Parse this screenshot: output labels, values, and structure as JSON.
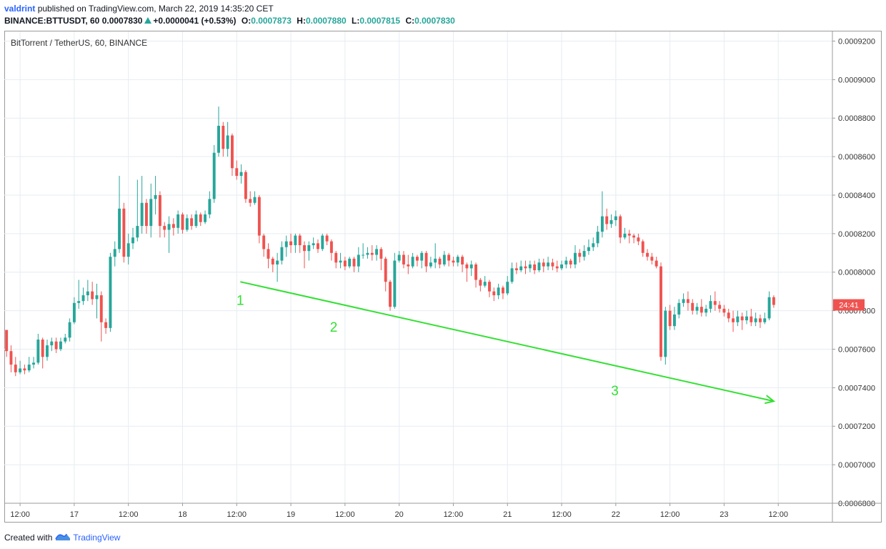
{
  "header": {
    "user": "valdrint",
    "published": "published on TradingView.com, March 22, 2019 14:35:20 CET",
    "symbol": "BINANCE:BTTUSDT, 60",
    "last": "0.0007830",
    "change": "+0.0000041 (+0.53%)",
    "o_label": "O:",
    "o": "0.0007873",
    "h_label": "H:",
    "h": "0.0007880",
    "l_label": "L:",
    "l": "0.0007815",
    "c_label": "C:",
    "c": "0.0007830"
  },
  "legend": "BitTorrent / TetherUS, 60, BINANCE",
  "footer": {
    "created_with": "Created with",
    "brand": "TradingView"
  },
  "colors": {
    "up": "#26a69a",
    "down": "#ef5350",
    "annotation": "#33e033",
    "grid": "#e6ecf2",
    "timer": "#ef5350"
  },
  "price_timer": "24:41",
  "annotations": [
    "1",
    "2",
    "3"
  ],
  "chart_data": {
    "type": "candlestick",
    "title": "BitTorrent / TetherUS, 60, BINANCE",
    "xlabel": "",
    "ylabel": "",
    "ylim": [
      0.00068,
      0.000925
    ],
    "y_ticks": [
      "0.0006800",
      "0.0007000",
      "0.0007200",
      "0.0007400",
      "0.0007600",
      "0.0007800",
      "0.0008000",
      "0.0008200",
      "0.0008400",
      "0.0008600",
      "0.0008800",
      "0.0009000",
      "0.0009200"
    ],
    "x_ticks": [
      "12:00",
      "17",
      "12:00",
      "18",
      "12:00",
      "19",
      "12:00",
      "20",
      "12:00",
      "21",
      "12:00",
      "22",
      "12:00",
      "23",
      "12:00"
    ],
    "x_tick_hours": [
      12,
      24,
      36,
      48,
      60,
      72,
      84,
      96,
      108,
      120,
      132,
      144,
      156,
      168,
      180
    ],
    "x_range_hours": [
      8.5,
      192
    ],
    "grid": true,
    "current_price": 0.000783,
    "candles": [
      [
        0.00077,
        0.000759,
        0.00077,
        0.000756
      ],
      [
        0.000759,
        0.000752,
        0.000762,
        0.000748
      ],
      [
        0.000752,
        0.000748,
        0.000756,
        0.000746
      ],
      [
        0.000748,
        0.00075,
        0.000754,
        0.000747
      ],
      [
        0.00075,
        0.000749,
        0.000752,
        0.000747
      ],
      [
        0.000749,
        0.000752,
        0.000756,
        0.000748
      ],
      [
        0.000752,
        0.000753,
        0.000756,
        0.00075
      ],
      [
        0.000753,
        0.000765,
        0.000768,
        0.000752
      ],
      [
        0.000765,
        0.000756,
        0.000766,
        0.00075
      ],
      [
        0.000756,
        0.000762,
        0.000765,
        0.000754
      ],
      [
        0.000762,
        0.000764,
        0.000766,
        0.000759
      ],
      [
        0.000764,
        0.00076,
        0.000766,
        0.000758
      ],
      [
        0.00076,
        0.000764,
        0.000766,
        0.000759
      ],
      [
        0.000764,
        0.000766,
        0.000768,
        0.000763
      ],
      [
        0.000766,
        0.000774,
        0.000776,
        0.000764
      ],
      [
        0.000774,
        0.000784,
        0.000787,
        0.000773
      ],
      [
        0.000784,
        0.000785,
        0.000796,
        0.000781
      ],
      [
        0.000785,
        0.000788,
        0.000792,
        0.000783
      ],
      [
        0.000788,
        0.00079,
        0.000796,
        0.000785
      ],
      [
        0.00079,
        0.000786,
        0.000795,
        0.000783
      ],
      [
        0.000786,
        0.000788,
        0.000794,
        0.000776
      ],
      [
        0.000788,
        0.000774,
        0.00079,
        0.000764
      ],
      [
        0.000774,
        0.000771,
        0.000776,
        0.000768
      ],
      [
        0.000771,
        0.000808,
        0.00081,
        0.000769
      ],
      [
        0.000808,
        0.000812,
        0.000816,
        0.000803
      ],
      [
        0.000812,
        0.000833,
        0.00085,
        0.00081
      ],
      [
        0.000833,
        0.000808,
        0.000836,
        0.000805
      ],
      [
        0.000808,
        0.000815,
        0.00082,
        0.000804
      ],
      [
        0.000815,
        0.000818,
        0.000823,
        0.000812
      ],
      [
        0.000818,
        0.000824,
        0.000848,
        0.000816
      ],
      [
        0.000824,
        0.000836,
        0.00085,
        0.00082
      ],
      [
        0.000836,
        0.000824,
        0.000838,
        0.00082
      ],
      [
        0.000824,
        0.000838,
        0.000846,
        0.000818
      ],
      [
        0.000838,
        0.00084,
        0.00085,
        0.00083
      ],
      [
        0.00084,
        0.000824,
        0.000842,
        0.000818
      ],
      [
        0.000824,
        0.000822,
        0.000826,
        0.000818
      ],
      [
        0.000822,
        0.000825,
        0.000829,
        0.00081
      ],
      [
        0.000825,
        0.000823,
        0.000828,
        0.000819
      ],
      [
        0.000823,
        0.00083,
        0.000832,
        0.00082
      ],
      [
        0.00083,
        0.000822,
        0.000831,
        0.00082
      ],
      [
        0.000822,
        0.000828,
        0.00083,
        0.000821
      ],
      [
        0.000828,
        0.000824,
        0.00083,
        0.000822
      ],
      [
        0.000824,
        0.00083,
        0.000832,
        0.000823
      ],
      [
        0.00083,
        0.000826,
        0.000831,
        0.000824
      ],
      [
        0.000826,
        0.00083,
        0.000832,
        0.000825
      ],
      [
        0.00083,
        0.000838,
        0.000842,
        0.000828
      ],
      [
        0.000838,
        0.000862,
        0.000866,
        0.000836
      ],
      [
        0.000862,
        0.000876,
        0.000886,
        0.00086
      ],
      [
        0.000876,
        0.000864,
        0.000878,
        0.00086
      ],
      [
        0.000864,
        0.000871,
        0.000878,
        0.00086
      ],
      [
        0.000871,
        0.000854,
        0.000872,
        0.00085
      ],
      [
        0.000854,
        0.00085,
        0.000858,
        0.000848
      ],
      [
        0.00085,
        0.000852,
        0.000856,
        0.000846
      ],
      [
        0.000852,
        0.000838,
        0.000853,
        0.000836
      ],
      [
        0.000838,
        0.000836,
        0.000842,
        0.000834
      ],
      [
        0.000836,
        0.000839,
        0.000842,
        0.000835
      ],
      [
        0.000839,
        0.000819,
        0.00084,
        0.000815
      ],
      [
        0.000819,
        0.000812,
        0.00082,
        0.000808
      ],
      [
        0.000812,
        0.000807,
        0.000815,
        0.000802
      ],
      [
        0.000807,
        0.000804,
        0.000808,
        0.0008
      ],
      [
        0.000804,
        0.000806,
        0.00081,
        0.000795
      ],
      [
        0.000806,
        0.000813,
        0.000816,
        0.000804
      ],
      [
        0.000813,
        0.000816,
        0.000819,
        0.000808
      ],
      [
        0.000816,
        0.000814,
        0.00082,
        0.00081
      ],
      [
        0.000814,
        0.000819,
        0.00082,
        0.00081
      ],
      [
        0.000819,
        0.000814,
        0.00082,
        0.00081
      ],
      [
        0.000814,
        0.000811,
        0.000816,
        0.000802
      ],
      [
        0.000811,
        0.000814,
        0.000816,
        0.000806
      ],
      [
        0.000814,
        0.000815,
        0.000818,
        0.000812
      ],
      [
        0.000815,
        0.000812,
        0.000817,
        0.00081
      ],
      [
        0.000812,
        0.000819,
        0.00082,
        0.000811
      ],
      [
        0.000819,
        0.000816,
        0.00082,
        0.000814
      ],
      [
        0.000816,
        0.00081,
        0.000817,
        0.000806
      ],
      [
        0.00081,
        0.000805,
        0.000811,
        0.000802
      ],
      [
        0.000805,
        0.000806,
        0.00081,
        0.000802
      ],
      [
        0.000806,
        0.000803,
        0.000808,
        0.000801
      ],
      [
        0.000803,
        0.000807,
        0.000808,
        0.000802
      ],
      [
        0.000807,
        0.000803,
        0.000808,
        0.0008
      ],
      [
        0.000803,
        0.000809,
        0.000813,
        0.0008
      ],
      [
        0.000809,
        0.000809,
        0.000815,
        0.000807
      ],
      [
        0.000809,
        0.00081,
        0.000813,
        0.000807
      ],
      [
        0.00081,
        0.000809,
        0.000814,
        0.000806
      ],
      [
        0.000809,
        0.000812,
        0.000814,
        0.000806
      ],
      [
        0.000812,
        0.000807,
        0.000813,
        0.000801
      ],
      [
        0.000807,
        0.000795,
        0.000808,
        0.00079
      ],
      [
        0.000795,
        0.000782,
        0.000796,
        0.00078
      ],
      [
        0.000782,
        0.000806,
        0.00081,
        0.000781
      ],
      [
        0.000806,
        0.000809,
        0.000811,
        0.000805
      ],
      [
        0.000809,
        0.000804,
        0.000811,
        0.000802
      ],
      [
        0.000804,
        0.000803,
        0.000809,
        0.000799
      ],
      [
        0.000803,
        0.000808,
        0.00081,
        0.000802
      ],
      [
        0.000808,
        0.000806,
        0.000809,
        0.000803
      ],
      [
        0.000806,
        0.00081,
        0.000811,
        0.000802
      ],
      [
        0.00081,
        0.000803,
        0.000811,
        0.0008
      ],
      [
        0.000803,
        0.000805,
        0.000808,
        0.000802
      ],
      [
        0.000805,
        0.000807,
        0.000815,
        0.000802
      ],
      [
        0.000807,
        0.000804,
        0.000808,
        0.000802
      ],
      [
        0.000804,
        0.000809,
        0.000811,
        0.000803
      ],
      [
        0.000809,
        0.000806,
        0.00081,
        0.000803
      ],
      [
        0.000806,
        0.000805,
        0.000808,
        0.000803
      ],
      [
        0.000805,
        0.000808,
        0.000809,
        0.000803
      ],
      [
        0.000808,
        0.000804,
        0.000809,
        0.0008
      ],
      [
        0.000804,
        0.000802,
        0.000805,
        0.000795
      ],
      [
        0.000802,
        0.000804,
        0.000806,
        0.000798
      ],
      [
        0.000804,
        0.000796,
        0.000805,
        0.000792
      ],
      [
        0.000796,
        0.000793,
        0.000797,
        0.00079
      ],
      [
        0.000793,
        0.000795,
        0.000798,
        0.000792
      ],
      [
        0.000795,
        0.00079,
        0.000796,
        0.000787
      ],
      [
        0.00079,
        0.000788,
        0.000792,
        0.000785
      ],
      [
        0.000788,
        0.000792,
        0.000794,
        0.000786
      ],
      [
        0.000792,
        0.000789,
        0.000793,
        0.000786
      ],
      [
        0.000789,
        0.000795,
        0.000798,
        0.000788
      ],
      [
        0.000795,
        0.000802,
        0.000805,
        0.000794
      ],
      [
        0.000802,
        0.000801,
        0.000805,
        0.000799
      ],
      [
        0.000801,
        0.000803,
        0.000806,
        0.0008
      ],
      [
        0.000803,
        0.000802,
        0.000806,
        0.000799
      ],
      [
        0.000802,
        0.000804,
        0.000806,
        0.0008
      ],
      [
        0.000804,
        0.000801,
        0.000806,
        0.000799
      ],
      [
        0.000801,
        0.000805,
        0.000807,
        0.0008
      ],
      [
        0.000805,
        0.000803,
        0.000807,
        0.0008
      ],
      [
        0.000803,
        0.000805,
        0.000808,
        0.000801
      ],
      [
        0.000805,
        0.000803,
        0.000807,
        0.000801
      ],
      [
        0.000803,
        0.000802,
        0.000806,
        0.0008
      ],
      [
        0.000802,
        0.000804,
        0.000806,
        0.000801
      ],
      [
        0.000804,
        0.000806,
        0.000808,
        0.000802
      ],
      [
        0.000806,
        0.000804,
        0.000807,
        0.000802
      ],
      [
        0.000804,
        0.00081,
        0.000814,
        0.000802
      ],
      [
        0.00081,
        0.000808,
        0.000812,
        0.000805
      ],
      [
        0.000808,
        0.000811,
        0.000814,
        0.000806
      ],
      [
        0.000811,
        0.000813,
        0.000817,
        0.000809
      ],
      [
        0.000813,
        0.000815,
        0.000818,
        0.000811
      ],
      [
        0.000815,
        0.000821,
        0.000824,
        0.000813
      ],
      [
        0.000821,
        0.000829,
        0.000842,
        0.000818
      ],
      [
        0.000829,
        0.000825,
        0.000833,
        0.000822
      ],
      [
        0.000825,
        0.000827,
        0.00083,
        0.000823
      ],
      [
        0.000827,
        0.000829,
        0.000832,
        0.000824
      ],
      [
        0.000829,
        0.000818,
        0.00083,
        0.000815
      ],
      [
        0.000818,
        0.00082,
        0.000823,
        0.000817
      ],
      [
        0.00082,
        0.000819,
        0.000822,
        0.000815
      ],
      [
        0.000819,
        0.000818,
        0.00082,
        0.000815
      ],
      [
        0.000818,
        0.000816,
        0.00082,
        0.000814
      ],
      [
        0.000816,
        0.00081,
        0.000817,
        0.000808
      ],
      [
        0.00081,
        0.000808,
        0.000812,
        0.000806
      ],
      [
        0.000808,
        0.000806,
        0.00081,
        0.000804
      ],
      [
        0.000806,
        0.000803,
        0.000808,
        0.000802
      ],
      [
        0.000803,
        0.000756,
        0.000805,
        0.000754
      ],
      [
        0.000756,
        0.00078,
        0.000782,
        0.000752
      ],
      [
        0.00078,
        0.000772,
        0.000783,
        0.00077
      ],
      [
        0.000772,
        0.000778,
        0.000782,
        0.00077
      ],
      [
        0.000778,
        0.000784,
        0.000786,
        0.000776
      ],
      [
        0.000784,
        0.000786,
        0.000789,
        0.000782
      ],
      [
        0.000786,
        0.000784,
        0.00079,
        0.00078
      ],
      [
        0.000784,
        0.00078,
        0.000786,
        0.000778
      ],
      [
        0.00078,
        0.000782,
        0.000784,
        0.000778
      ],
      [
        0.000782,
        0.000779,
        0.000786,
        0.000777
      ],
      [
        0.000779,
        0.000781,
        0.000783,
        0.000777
      ],
      [
        0.000781,
        0.000785,
        0.000788,
        0.000779
      ],
      [
        0.000785,
        0.000783,
        0.00079,
        0.00078
      ],
      [
        0.000783,
        0.000781,
        0.000785,
        0.000779
      ],
      [
        0.000781,
        0.000779,
        0.000783,
        0.000777
      ],
      [
        0.000779,
        0.000776,
        0.000781,
        0.000774
      ],
      [
        0.000776,
        0.000774,
        0.00078,
        0.000769
      ],
      [
        0.000774,
        0.000777,
        0.00078,
        0.000772
      ],
      [
        0.000777,
        0.000775,
        0.000779,
        0.00077
      ],
      [
        0.000775,
        0.000777,
        0.00078,
        0.000773
      ],
      [
        0.000777,
        0.000774,
        0.000781,
        0.000772
      ],
      [
        0.000774,
        0.000776,
        0.000779,
        0.000772
      ],
      [
        0.000776,
        0.000774,
        0.000778,
        0.000771
      ],
      [
        0.000774,
        0.000776,
        0.000779,
        0.000773
      ],
      [
        0.000776,
        0.000787,
        0.00079,
        0.000775
      ],
      [
        0.000787,
        0.000783,
        0.000788,
        0.0007815
      ]
    ],
    "trendline": {
      "from": [
        60.8,
        0.000795
      ],
      "to": [
        179,
        0.000733
      ],
      "arrow": true
    },
    "point_labels": [
      {
        "text": "1",
        "hour": 60.8,
        "price": 0.000783
      },
      {
        "text": "2",
        "hour": 81.5,
        "price": 0.000769
      },
      {
        "text": "3",
        "hour": 143.8,
        "price": 0.000736
      }
    ]
  }
}
